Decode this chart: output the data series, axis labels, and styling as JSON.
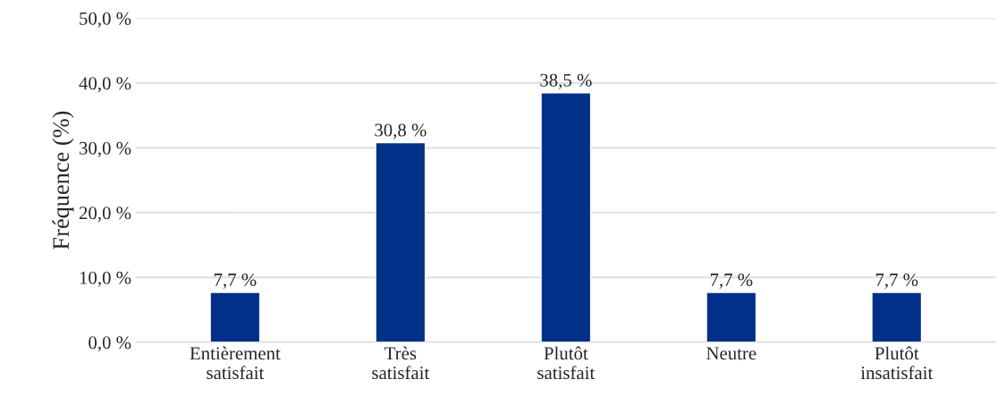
{
  "chart_data": {
    "type": "bar",
    "ylabel": "Fréquence (%)",
    "categories": [
      "Entièrement\nsatisfait",
      "Très\nsatisfait",
      "Plutôt\nsatisfait",
      "Neutre",
      "Plutôt\ninsatisfait"
    ],
    "values": [
      7.7,
      30.8,
      38.5,
      7.7,
      7.7
    ],
    "color": "#003087",
    "value_labels": [
      "7,7 %",
      "30,8 %",
      "38,5 %",
      "7,7 %",
      "7,7 %"
    ],
    "ylim": [
      0,
      50
    ],
    "yticks": [
      {
        "value": 0,
        "label": "0,0 %"
      },
      {
        "value": 10,
        "label": "10,0 %"
      },
      {
        "value": 20,
        "label": "20,0 %"
      },
      {
        "value": 30,
        "label": "30,0 %"
      },
      {
        "value": 40,
        "label": "40,0 %"
      },
      {
        "value": 50,
        "label": "50,0 %"
      }
    ],
    "grid": "y",
    "legend": false
  }
}
